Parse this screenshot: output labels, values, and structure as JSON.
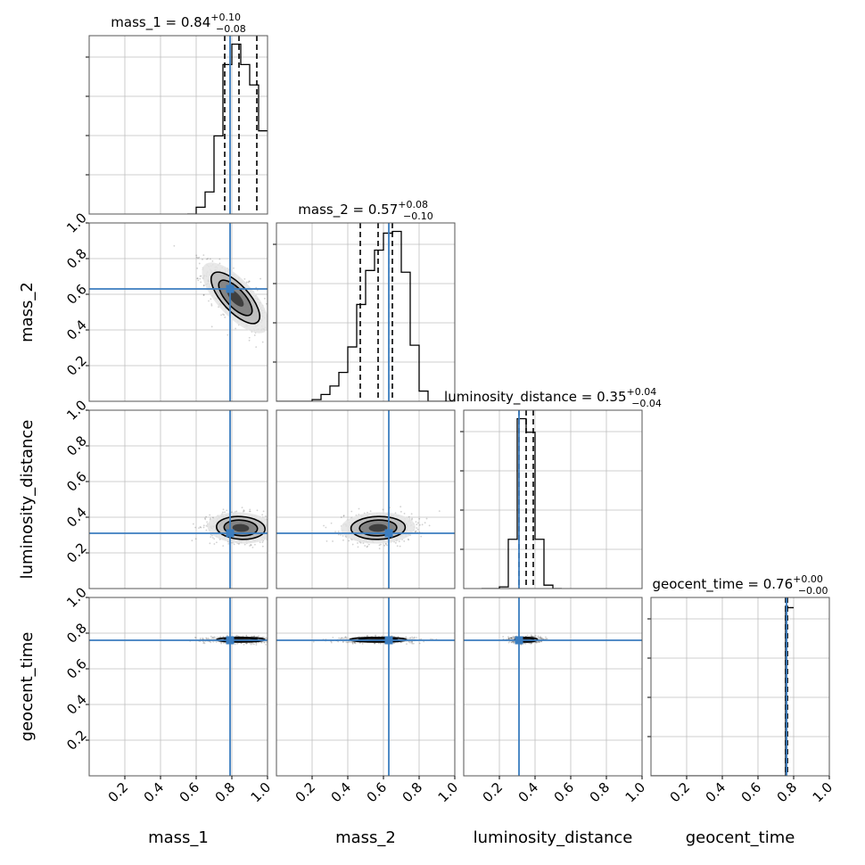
{
  "chart_data": {
    "type": "corner",
    "parameters": [
      "mass_1",
      "mass_2",
      "luminosity_distance",
      "geocent_time"
    ],
    "axis_range": [
      0,
      1
    ],
    "tick_values": [
      0.2,
      0.4,
      0.6,
      0.8,
      1.0
    ],
    "tick_labels": [
      "0.2",
      "0.4",
      "0.6",
      "0.8",
      "1.0"
    ],
    "grid": true,
    "colors": {
      "truth": "#3b7dbf",
      "histogram": "#000000",
      "histogram_tail": "#777777",
      "grid": "#bfbfbf",
      "frame": "#555555"
    },
    "truths": {
      "mass_1": 0.79,
      "mass_2": 0.63,
      "luminosity_distance": 0.31,
      "geocent_time": 0.76
    },
    "titles": [
      {
        "param": "mass_1",
        "prefix": "mass_1 = ",
        "value": "0.84",
        "plus": "+0.10",
        "minus": "−0.08"
      },
      {
        "param": "mass_2",
        "prefix": "mass_2 = ",
        "value": "0.57",
        "plus": "+0.08",
        "minus": "−0.10"
      },
      {
        "param": "luminosity_distance",
        "prefix": "luminosity_distance = ",
        "value": "0.35",
        "plus": "+0.04",
        "minus": "−0.04"
      },
      {
        "param": "geocent_time",
        "prefix": "geocent_time = ",
        "value": "0.76",
        "plus": "+0.00",
        "minus": "−0.00"
      }
    ],
    "quantiles": {
      "mass_1": [
        0.76,
        0.84,
        0.94
      ],
      "mass_2": [
        0.47,
        0.57,
        0.65
      ],
      "luminosity_distance": [
        0.31,
        0.35,
        0.39
      ],
      "geocent_time": [
        0.755,
        0.76,
        0.765
      ]
    },
    "histograms": {
      "mass_1": {
        "edges": [
          0.55,
          0.6,
          0.65,
          0.7,
          0.75,
          0.8,
          0.85,
          0.9,
          0.95,
          1.0
        ],
        "counts": [
          0.0,
          0.04,
          0.13,
          0.46,
          0.88,
          1.0,
          0.88,
          0.76,
          0.49
        ],
        "ymax": 1.05
      },
      "mass_2": {
        "edges": [
          0.0,
          0.1,
          0.2,
          0.25,
          0.3,
          0.35,
          0.4,
          0.45,
          0.5,
          0.55,
          0.6,
          0.65,
          0.7,
          0.75,
          0.8,
          0.85,
          0.9,
          1.0
        ],
        "counts": [
          0.0,
          0.0,
          0.01,
          0.04,
          0.09,
          0.17,
          0.32,
          0.57,
          0.77,
          0.89,
          0.99,
          1.0,
          0.76,
          0.33,
          0.06,
          0.0,
          0.0
        ],
        "ymax": 1.05
      },
      "luminosity_distance": {
        "edges": [
          0.1,
          0.15,
          0.2,
          0.25,
          0.3,
          0.35,
          0.4,
          0.45,
          0.5,
          0.55
        ],
        "counts": [
          0.0,
          0.0,
          0.01,
          0.29,
          1.0,
          0.92,
          0.29,
          0.02,
          0.0
        ],
        "ymax": 1.05
      },
      "geocent_time": {
        "edges": [
          0.0,
          0.745,
          0.755,
          0.765,
          0.78,
          0.8
        ],
        "counts": [
          0.0,
          0.0,
          1.0,
          0.99,
          0.99
        ],
        "ymax": 1.05
      }
    },
    "density_2d": [
      {
        "x": "mass_1",
        "y": "mass_2",
        "center": [
          0.82,
          0.58
        ],
        "sx": 0.085,
        "sy": 0.09,
        "rho": -0.72
      },
      {
        "x": "mass_1",
        "y": "luminosity_distance",
        "center": [
          0.85,
          0.34
        ],
        "sx": 0.085,
        "sy": 0.04,
        "rho": -0.1
      },
      {
        "x": "mass_2",
        "y": "luminosity_distance",
        "center": [
          0.57,
          0.34
        ],
        "sx": 0.095,
        "sy": 0.04,
        "rho": 0.05
      },
      {
        "x": "mass_1",
        "y": "geocent_time",
        "center": [
          0.85,
          0.763
        ],
        "sx": 0.085,
        "sy": 0.008,
        "rho": 0
      },
      {
        "x": "mass_2",
        "y": "geocent_time",
        "center": [
          0.57,
          0.763
        ],
        "sx": 0.1,
        "sy": 0.008,
        "rho": 0
      },
      {
        "x": "luminosity_distance",
        "y": "geocent_time",
        "center": [
          0.35,
          0.763
        ],
        "sx": 0.04,
        "sy": 0.008,
        "rho": 0
      }
    ]
  }
}
